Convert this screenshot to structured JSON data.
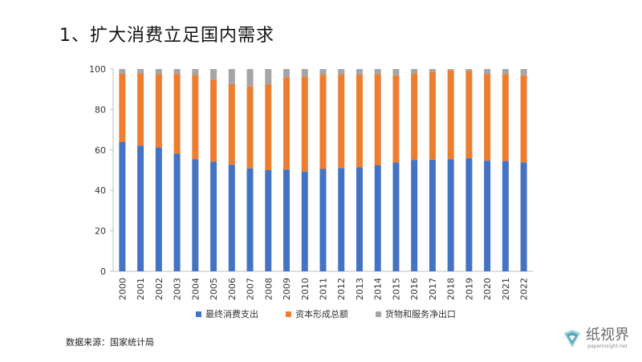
{
  "title": "1、扩大消费立足国内需求",
  "source": "数据来源：国家统计局",
  "logo": {
    "name": "纸视界",
    "url": "paperinsight.net"
  },
  "colors": {
    "consumption": "#4472C4",
    "capital": "#ED7D31",
    "net_export": "#A5A5A5"
  },
  "chart_data": {
    "type": "bar",
    "stacked": true,
    "categories": [
      "2000",
      "2001",
      "2002",
      "2003",
      "2004",
      "2005",
      "2006",
      "2007",
      "2008",
      "2009",
      "2010",
      "2011",
      "2012",
      "2013",
      "2014",
      "2015",
      "2016",
      "2017",
      "2018",
      "2019",
      "2020",
      "2021",
      "2022"
    ],
    "series": [
      {
        "name": "最终消费支出",
        "color": "#4472C4",
        "values": [
          63.9,
          62.2,
          61.1,
          58.1,
          55.4,
          54.3,
          52.7,
          50.9,
          50.0,
          50.3,
          49.3,
          50.6,
          51.1,
          51.4,
          52.4,
          53.8,
          55.1,
          55.2,
          55.4,
          55.9,
          54.7,
          54.5,
          53.8
        ]
      },
      {
        "name": "资本形成总额",
        "color": "#ED7D31",
        "values": [
          33.7,
          35.6,
          36.3,
          39.5,
          41.7,
          40.5,
          39.8,
          40.5,
          42.5,
          45.5,
          46.9,
          46.6,
          46.1,
          45.9,
          45.0,
          43.1,
          42.5,
          43.3,
          44.1,
          43.1,
          42.9,
          43.0,
          43.1
        ]
      },
      {
        "name": "货物和服务净出口",
        "color": "#A5A5A5",
        "values": [
          2.4,
          2.2,
          2.6,
          2.4,
          2.9,
          5.2,
          7.5,
          8.6,
          7.5,
          4.2,
          3.8,
          2.8,
          2.8,
          2.7,
          2.6,
          3.1,
          2.4,
          1.5,
          0.5,
          1.0,
          2.4,
          2.5,
          3.1
        ]
      }
    ],
    "ylim": [
      0,
      100
    ],
    "yticks": [
      0,
      20,
      40,
      60,
      80,
      100
    ],
    "grid": false,
    "legend_position": "bottom"
  }
}
